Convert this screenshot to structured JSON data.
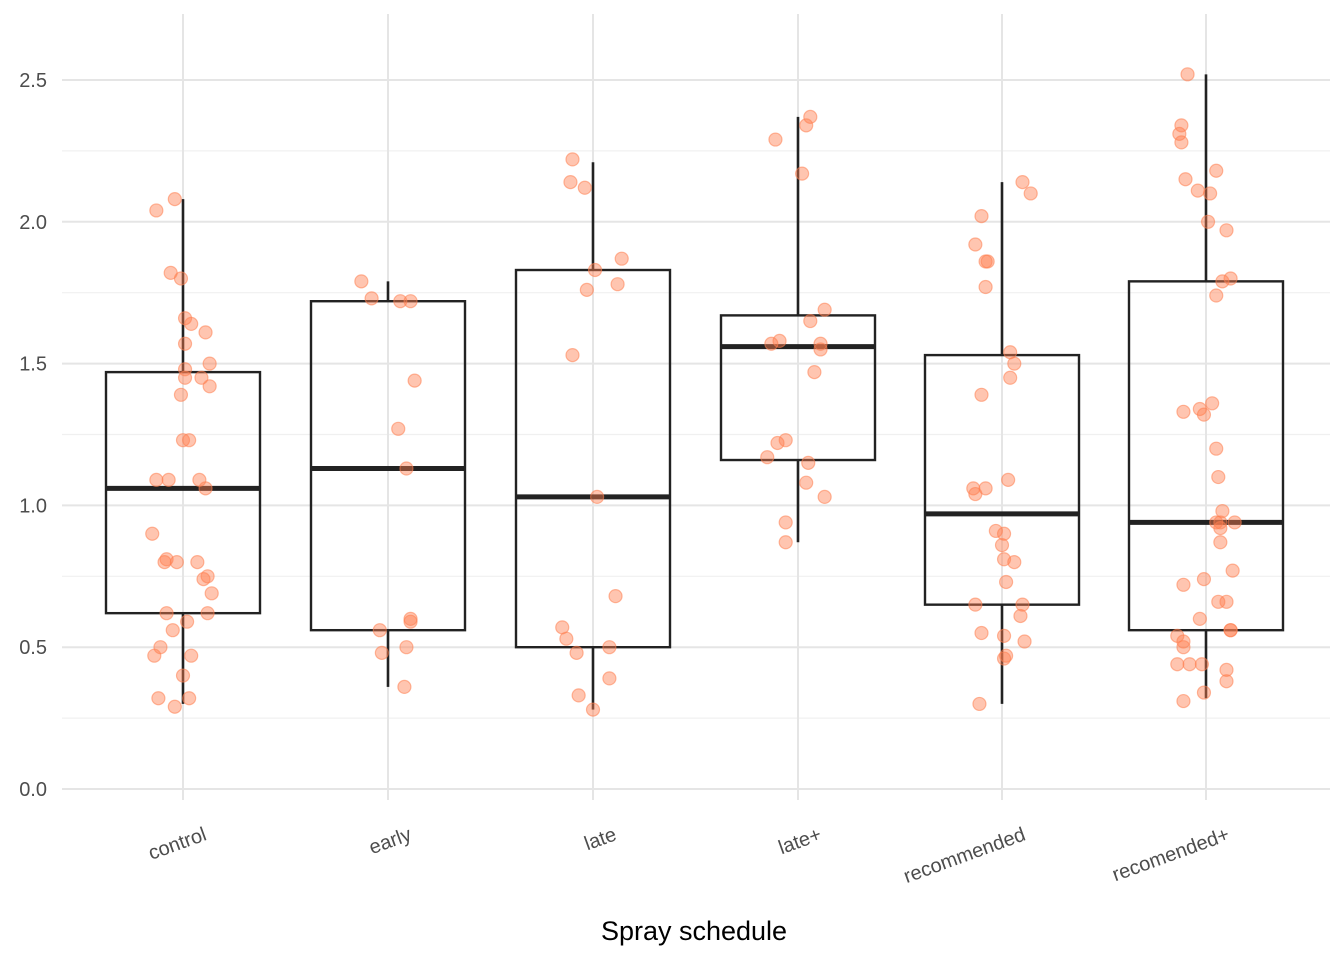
{
  "chart_data": {
    "type": "box",
    "xlabel": "Spray schedule",
    "ylabel": "",
    "ylim": [
      0.0,
      2.62
    ],
    "yticks": [
      0.0,
      0.5,
      1.0,
      1.5,
      2.0,
      2.5
    ],
    "ytick_labels": [
      "0.0",
      "0.5",
      "1.0",
      "1.5",
      "2.0",
      "2.5"
    ],
    "grid": true,
    "categories": [
      "control",
      "early",
      "late",
      "late+",
      "recommended",
      "recomended+"
    ],
    "colors": {
      "points": "#FF7F50",
      "box": "#222222",
      "grid": "#e5e5e5"
    },
    "boxes": [
      {
        "category": "control",
        "q1": 0.62,
        "median": 1.06,
        "q3": 1.47,
        "whisker_low": 0.3,
        "whisker_high": 2.08
      },
      {
        "category": "early",
        "q1": 0.56,
        "median": 1.13,
        "q3": 1.72,
        "whisker_low": 0.36,
        "whisker_high": 1.79
      },
      {
        "category": "late",
        "q1": 0.5,
        "median": 1.03,
        "q3": 1.83,
        "whisker_low": 0.28,
        "whisker_high": 2.21
      },
      {
        "category": "late+",
        "q1": 1.16,
        "median": 1.56,
        "q3": 1.67,
        "whisker_low": 0.87,
        "whisker_high": 2.37
      },
      {
        "category": "recommended",
        "q1": 0.65,
        "median": 0.97,
        "q3": 1.53,
        "whisker_low": 0.3,
        "whisker_high": 2.14
      },
      {
        "category": "recomended+",
        "q1": 0.56,
        "median": 0.94,
        "q3": 1.79,
        "whisker_low": 0.32,
        "whisker_high": 2.52
      }
    ],
    "points": [
      [
        {
          "dx": -0.04,
          "y": 2.08
        },
        {
          "dx": -0.13,
          "y": 2.04
        },
        {
          "dx": -0.06,
          "y": 1.82
        },
        {
          "dx": -0.01,
          "y": 1.8
        },
        {
          "dx": 0.01,
          "y": 1.66
        },
        {
          "dx": 0.04,
          "y": 1.64
        },
        {
          "dx": 0.11,
          "y": 1.61
        },
        {
          "dx": 0.01,
          "y": 1.57
        },
        {
          "dx": 0.13,
          "y": 1.5
        },
        {
          "dx": 0.01,
          "y": 1.48
        },
        {
          "dx": 0.01,
          "y": 1.45
        },
        {
          "dx": 0.09,
          "y": 1.45
        },
        {
          "dx": 0.13,
          "y": 1.42
        },
        {
          "dx": -0.01,
          "y": 1.39
        },
        {
          "dx": 0.0,
          "y": 1.23
        },
        {
          "dx": 0.03,
          "y": 1.23
        },
        {
          "dx": -0.13,
          "y": 1.09
        },
        {
          "dx": -0.07,
          "y": 1.09
        },
        {
          "dx": 0.08,
          "y": 1.09
        },
        {
          "dx": 0.11,
          "y": 1.06
        },
        {
          "dx": -0.15,
          "y": 0.9
        },
        {
          "dx": -0.08,
          "y": 0.81
        },
        {
          "dx": -0.09,
          "y": 0.8
        },
        {
          "dx": -0.03,
          "y": 0.8
        },
        {
          "dx": 0.07,
          "y": 0.8
        },
        {
          "dx": 0.12,
          "y": 0.75
        },
        {
          "dx": 0.1,
          "y": 0.74
        },
        {
          "dx": 0.14,
          "y": 0.69
        },
        {
          "dx": -0.08,
          "y": 0.62
        },
        {
          "dx": 0.12,
          "y": 0.62
        },
        {
          "dx": 0.02,
          "y": 0.59
        },
        {
          "dx": -0.05,
          "y": 0.56
        },
        {
          "dx": -0.11,
          "y": 0.5
        },
        {
          "dx": 0.04,
          "y": 0.47
        },
        {
          "dx": -0.14,
          "y": 0.47
        },
        {
          "dx": 0.0,
          "y": 0.4
        },
        {
          "dx": -0.12,
          "y": 0.32
        },
        {
          "dx": 0.03,
          "y": 0.32
        },
        {
          "dx": -0.04,
          "y": 0.29
        }
      ],
      [
        {
          "dx": -0.13,
          "y": 1.79
        },
        {
          "dx": -0.08,
          "y": 1.73
        },
        {
          "dx": 0.06,
          "y": 1.72
        },
        {
          "dx": 0.11,
          "y": 1.72
        },
        {
          "dx": 0.13,
          "y": 1.44
        },
        {
          "dx": 0.05,
          "y": 1.27
        },
        {
          "dx": 0.09,
          "y": 1.13
        },
        {
          "dx": 0.11,
          "y": 0.6
        },
        {
          "dx": 0.11,
          "y": 0.59
        },
        {
          "dx": -0.04,
          "y": 0.56
        },
        {
          "dx": 0.09,
          "y": 0.5
        },
        {
          "dx": -0.03,
          "y": 0.48
        },
        {
          "dx": 0.08,
          "y": 0.36
        }
      ],
      [
        {
          "dx": -0.1,
          "y": 2.22
        },
        {
          "dx": -0.11,
          "y": 2.14
        },
        {
          "dx": -0.04,
          "y": 2.12
        },
        {
          "dx": 0.14,
          "y": 1.87
        },
        {
          "dx": 0.01,
          "y": 1.83
        },
        {
          "dx": 0.12,
          "y": 1.78
        },
        {
          "dx": -0.03,
          "y": 1.76
        },
        {
          "dx": -0.1,
          "y": 1.53
        },
        {
          "dx": 0.02,
          "y": 1.03
        },
        {
          "dx": 0.11,
          "y": 0.68
        },
        {
          "dx": -0.15,
          "y": 0.57
        },
        {
          "dx": -0.13,
          "y": 0.53
        },
        {
          "dx": 0.08,
          "y": 0.5
        },
        {
          "dx": -0.08,
          "y": 0.48
        },
        {
          "dx": 0.08,
          "y": 0.39
        },
        {
          "dx": -0.07,
          "y": 0.33
        },
        {
          "dx": 0.0,
          "y": 0.28
        }
      ],
      [
        {
          "dx": 0.06,
          "y": 2.37
        },
        {
          "dx": 0.04,
          "y": 2.34
        },
        {
          "dx": -0.11,
          "y": 2.29
        },
        {
          "dx": 0.02,
          "y": 2.17
        },
        {
          "dx": 0.13,
          "y": 1.69
        },
        {
          "dx": 0.06,
          "y": 1.65
        },
        {
          "dx": -0.09,
          "y": 1.58
        },
        {
          "dx": 0.11,
          "y": 1.57
        },
        {
          "dx": -0.13,
          "y": 1.57
        },
        {
          "dx": 0.11,
          "y": 1.55
        },
        {
          "dx": 0.08,
          "y": 1.47
        },
        {
          "dx": -0.06,
          "y": 1.23
        },
        {
          "dx": -0.1,
          "y": 1.22
        },
        {
          "dx": -0.15,
          "y": 1.17
        },
        {
          "dx": 0.05,
          "y": 1.15
        },
        {
          "dx": 0.04,
          "y": 1.08
        },
        {
          "dx": 0.13,
          "y": 1.03
        },
        {
          "dx": -0.06,
          "y": 0.94
        },
        {
          "dx": -0.06,
          "y": 0.87
        }
      ],
      [
        {
          "dx": 0.1,
          "y": 2.14
        },
        {
          "dx": 0.14,
          "y": 2.1
        },
        {
          "dx": -0.1,
          "y": 2.02
        },
        {
          "dx": -0.13,
          "y": 1.92
        },
        {
          "dx": -0.08,
          "y": 1.86
        },
        {
          "dx": -0.07,
          "y": 1.86
        },
        {
          "dx": -0.08,
          "y": 1.77
        },
        {
          "dx": 0.04,
          "y": 1.54
        },
        {
          "dx": 0.06,
          "y": 1.5
        },
        {
          "dx": 0.04,
          "y": 1.45
        },
        {
          "dx": -0.1,
          "y": 1.39
        },
        {
          "dx": 0.03,
          "y": 1.09
        },
        {
          "dx": -0.14,
          "y": 1.06
        },
        {
          "dx": -0.08,
          "y": 1.06
        },
        {
          "dx": -0.13,
          "y": 1.04
        },
        {
          "dx": -0.03,
          "y": 0.91
        },
        {
          "dx": 0.01,
          "y": 0.9
        },
        {
          "dx": 0.0,
          "y": 0.86
        },
        {
          "dx": 0.01,
          "y": 0.81
        },
        {
          "dx": 0.06,
          "y": 0.8
        },
        {
          "dx": 0.02,
          "y": 0.73
        },
        {
          "dx": -0.13,
          "y": 0.65
        },
        {
          "dx": 0.1,
          "y": 0.65
        },
        {
          "dx": 0.09,
          "y": 0.61
        },
        {
          "dx": -0.1,
          "y": 0.55
        },
        {
          "dx": 0.01,
          "y": 0.54
        },
        {
          "dx": 0.11,
          "y": 0.52
        },
        {
          "dx": 0.02,
          "y": 0.47
        },
        {
          "dx": 0.01,
          "y": 0.46
        },
        {
          "dx": -0.11,
          "y": 0.3
        }
      ],
      [
        {
          "dx": -0.09,
          "y": 2.52
        },
        {
          "dx": -0.12,
          "y": 2.34
        },
        {
          "dx": -0.13,
          "y": 2.31
        },
        {
          "dx": -0.12,
          "y": 2.28
        },
        {
          "dx": 0.05,
          "y": 2.18
        },
        {
          "dx": -0.1,
          "y": 2.15
        },
        {
          "dx": -0.04,
          "y": 2.11
        },
        {
          "dx": 0.02,
          "y": 2.1
        },
        {
          "dx": 0.01,
          "y": 2.0
        },
        {
          "dx": 0.1,
          "y": 1.97
        },
        {
          "dx": 0.12,
          "y": 1.8
        },
        {
          "dx": 0.08,
          "y": 1.79
        },
        {
          "dx": 0.05,
          "y": 1.74
        },
        {
          "dx": 0.03,
          "y": 1.36
        },
        {
          "dx": -0.03,
          "y": 1.34
        },
        {
          "dx": -0.11,
          "y": 1.33
        },
        {
          "dx": -0.01,
          "y": 1.32
        },
        {
          "dx": 0.05,
          "y": 1.2
        },
        {
          "dx": 0.06,
          "y": 1.1
        },
        {
          "dx": 0.08,
          "y": 0.98
        },
        {
          "dx": 0.14,
          "y": 0.94
        },
        {
          "dx": 0.05,
          "y": 0.94
        },
        {
          "dx": 0.07,
          "y": 0.94
        },
        {
          "dx": 0.07,
          "y": 0.92
        },
        {
          "dx": 0.07,
          "y": 0.87
        },
        {
          "dx": 0.13,
          "y": 0.77
        },
        {
          "dx": -0.01,
          "y": 0.74
        },
        {
          "dx": -0.11,
          "y": 0.72
        },
        {
          "dx": 0.06,
          "y": 0.66
        },
        {
          "dx": 0.1,
          "y": 0.66
        },
        {
          "dx": -0.03,
          "y": 0.6
        },
        {
          "dx": 0.12,
          "y": 0.56
        },
        {
          "dx": 0.12,
          "y": 0.56
        },
        {
          "dx": -0.14,
          "y": 0.54
        },
        {
          "dx": -0.11,
          "y": 0.52
        },
        {
          "dx": -0.11,
          "y": 0.5
        },
        {
          "dx": -0.14,
          "y": 0.44
        },
        {
          "dx": -0.08,
          "y": 0.44
        },
        {
          "dx": -0.02,
          "y": 0.44
        },
        {
          "dx": 0.1,
          "y": 0.42
        },
        {
          "dx": 0.1,
          "y": 0.38
        },
        {
          "dx": -0.01,
          "y": 0.34
        },
        {
          "dx": -0.11,
          "y": 0.31
        }
      ]
    ]
  }
}
